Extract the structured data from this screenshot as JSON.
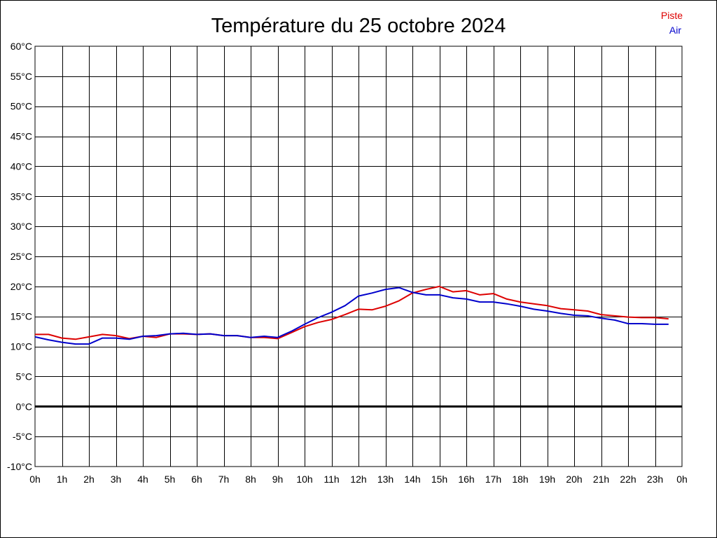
{
  "chart_data": {
    "type": "line",
    "title": "Température du 25 octobre 2024",
    "xlabel": "",
    "ylabel": "",
    "x_tick_labels": [
      "0h",
      "1h",
      "2h",
      "3h",
      "4h",
      "5h",
      "6h",
      "7h",
      "8h",
      "9h",
      "10h",
      "11h",
      "12h",
      "13h",
      "14h",
      "15h",
      "16h",
      "17h",
      "18h",
      "19h",
      "20h",
      "21h",
      "22h",
      "23h",
      "0h"
    ],
    "y_tick_labels": [
      "60°C",
      "55°C",
      "50°C",
      "45°C",
      "40°C",
      "35°C",
      "30°C",
      "25°C",
      "20°C",
      "15°C",
      "10°C",
      "5°C",
      "0°C",
      "-5°C",
      "-10°C"
    ],
    "xlim": [
      0,
      24
    ],
    "ylim": [
      -10,
      60
    ],
    "y_step": 5,
    "grid": true,
    "zero_line": true,
    "legend_position": "top-right",
    "series": [
      {
        "name": "Piste",
        "color": "#dd0000",
        "x": [
          0,
          0.5,
          1,
          1.5,
          2,
          2.5,
          3,
          3.5,
          4,
          4.5,
          5,
          5.5,
          6,
          6.5,
          7,
          7.5,
          8,
          8.5,
          9,
          9.5,
          10,
          10.5,
          11,
          11.5,
          12,
          12.5,
          13,
          13.5,
          14,
          14.5,
          15,
          15.5,
          16,
          16.5,
          17,
          17.5,
          18,
          18.5,
          19,
          19.5,
          20,
          20.5,
          21,
          21.5,
          22,
          22.5,
          23,
          23.5
        ],
        "values": [
          12,
          12,
          11.4,
          11.2,
          11.6,
          12,
          11.8,
          11.3,
          11.7,
          11.5,
          12.1,
          12.1,
          12,
          12.1,
          11.8,
          11.8,
          11.5,
          11.5,
          11.3,
          12.3,
          13.3,
          14,
          14.5,
          15.3,
          16.2,
          16.1,
          16.7,
          17.6,
          18.9,
          19.5,
          20,
          19.1,
          19.3,
          18.6,
          18.8,
          17.9,
          17.4,
          17.1,
          16.8,
          16.3,
          16.1,
          15.9,
          15.3,
          15.1,
          14.9,
          14.8,
          14.8,
          14.6
        ]
      },
      {
        "name": "Air",
        "color": "#0000cc",
        "x": [
          0,
          0.5,
          1,
          1.5,
          2,
          2.5,
          3,
          3.5,
          4,
          4.5,
          5,
          5.5,
          6,
          6.5,
          7,
          7.5,
          8,
          8.5,
          9,
          9.5,
          10,
          10.5,
          11,
          11.5,
          12,
          12.5,
          13,
          13.5,
          14,
          14.5,
          15,
          15.5,
          16,
          16.5,
          17,
          17.5,
          18,
          18.5,
          19,
          19.5,
          20,
          20.5,
          21,
          21.5,
          22,
          22.5,
          23,
          23.5
        ],
        "values": [
          11.6,
          11.1,
          10.7,
          10.4,
          10.4,
          11.4,
          11.4,
          11.2,
          11.7,
          11.8,
          12.1,
          12.2,
          12,
          12.1,
          11.8,
          11.8,
          11.5,
          11.7,
          11.5,
          12.5,
          13.7,
          14.8,
          15.7,
          16.8,
          18.4,
          18.9,
          19.5,
          19.8,
          19,
          18.6,
          18.6,
          18.1,
          17.9,
          17.4,
          17.4,
          17.1,
          16.7,
          16.2,
          15.9,
          15.5,
          15.2,
          15.1,
          14.7,
          14.4,
          13.8,
          13.8,
          13.7,
          13.7
        ]
      }
    ]
  }
}
